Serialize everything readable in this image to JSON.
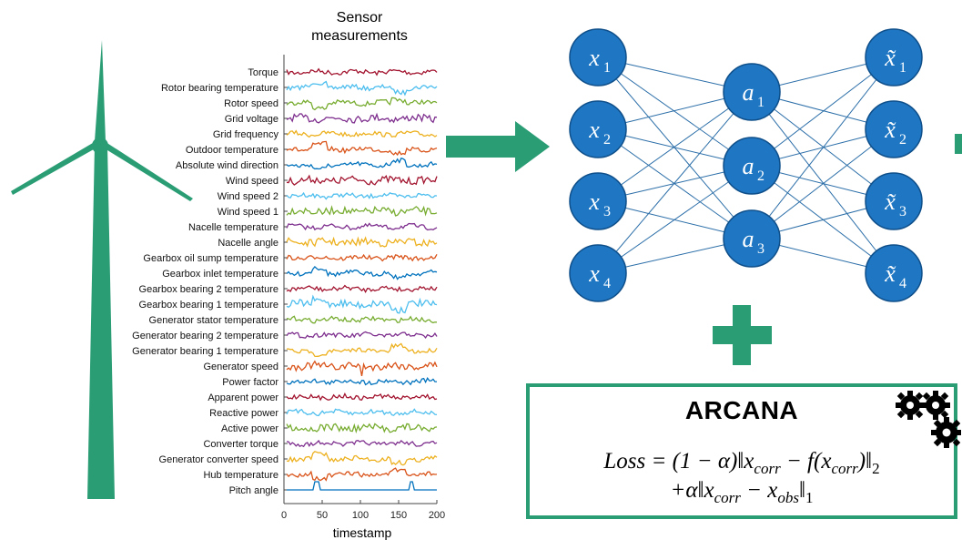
{
  "colors": {
    "accent": "#2a9d75",
    "node_fill": "#1f77c4",
    "node_stroke": "#0f4f8a",
    "edge": "#2b6ea8"
  },
  "plot": {
    "title_line1": "Sensor",
    "title_line2": "measurements",
    "xlabel": "timestamp",
    "xticks": [
      "0",
      "50",
      "100",
      "150",
      "200"
    ]
  },
  "chart_data": {
    "type": "line",
    "title": "Sensor measurements",
    "xlabel": "timestamp",
    "xlim": [
      0,
      200
    ],
    "signals": [
      {
        "name": "Torque",
        "color": "#a2142f"
      },
      {
        "name": "Rotor bearing temperature",
        "color": "#4dbeee"
      },
      {
        "name": "Rotor speed",
        "color": "#77ac30"
      },
      {
        "name": "Grid voltage",
        "color": "#7e2f8e"
      },
      {
        "name": "Grid frequency",
        "color": "#edb120"
      },
      {
        "name": "Outdoor temperature",
        "color": "#d95319"
      },
      {
        "name": "Absolute wind direction",
        "color": "#0072bd"
      },
      {
        "name": "Wind speed",
        "color": "#a2142f"
      },
      {
        "name": "Wind speed 2",
        "color": "#4dbeee"
      },
      {
        "name": "Wind speed 1",
        "color": "#77ac30"
      },
      {
        "name": "Nacelle temperature",
        "color": "#7e2f8e"
      },
      {
        "name": "Nacelle angle",
        "color": "#edb120"
      },
      {
        "name": "Gearbox oil sump temperature",
        "color": "#d95319"
      },
      {
        "name": "Gearbox inlet temperature",
        "color": "#0072bd"
      },
      {
        "name": "Gearbox bearing 2 temperature",
        "color": "#a2142f"
      },
      {
        "name": "Gearbox bearing 1 temperature",
        "color": "#4dbeee"
      },
      {
        "name": "Generator stator temperature",
        "color": "#77ac30"
      },
      {
        "name": "Generator bearing 2 temperature",
        "color": "#7e2f8e"
      },
      {
        "name": "Generator bearing 1 temperature",
        "color": "#edb120"
      },
      {
        "name": "Generator speed",
        "color": "#d95319"
      },
      {
        "name": "Power factor",
        "color": "#0072bd"
      },
      {
        "name": "Apparent power",
        "color": "#a2142f"
      },
      {
        "name": "Reactive power",
        "color": "#4dbeee"
      },
      {
        "name": "Active power",
        "color": "#77ac30"
      },
      {
        "name": "Converter torque",
        "color": "#7e2f8e"
      },
      {
        "name": "Generator converter speed",
        "color": "#edb120"
      },
      {
        "name": "Hub temperature",
        "color": "#d95319"
      },
      {
        "name": "Pitch angle",
        "color": "#0072bd"
      }
    ]
  },
  "network": {
    "input_nodes": [
      {
        "base": "x",
        "sub": "1"
      },
      {
        "base": "x",
        "sub": "2"
      },
      {
        "base": "x",
        "sub": "3"
      },
      {
        "base": "x",
        "sub": "4"
      }
    ],
    "hidden_nodes": [
      {
        "base": "a",
        "sub": "1"
      },
      {
        "base": "a",
        "sub": "2"
      },
      {
        "base": "a",
        "sub": "3"
      }
    ],
    "output_nodes": [
      {
        "base": "x̃",
        "sub": "1"
      },
      {
        "base": "x̃",
        "sub": "2"
      },
      {
        "base": "x̃",
        "sub": "3"
      },
      {
        "base": "x̃",
        "sub": "4"
      }
    ]
  },
  "arcana": {
    "title": "ARCANA",
    "loss_line1": "Loss = (1 − α)‖x_corr − f(x_corr)‖₂",
    "loss_line2": "+α‖x_corr − x_obs‖₁",
    "gear_icon": "gears-icon"
  }
}
